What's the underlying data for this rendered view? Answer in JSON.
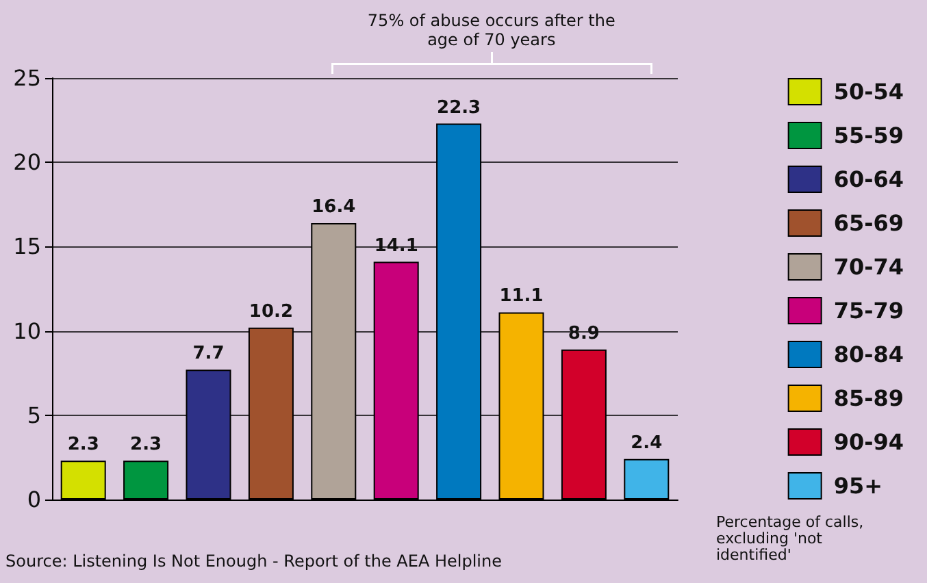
{
  "chart_data": {
    "type": "bar",
    "categories": [
      null,
      null,
      null,
      null,
      null,
      null,
      null,
      null,
      null,
      null
    ],
    "series": [
      {
        "name": "50-54",
        "color": "#d4e000",
        "values": [
          2.3,
          null,
          null,
          null,
          null,
          null,
          null,
          null,
          null,
          null
        ]
      },
      {
        "name": "55-59",
        "color": "#009640",
        "values": [
          null,
          2.3,
          null,
          null,
          null,
          null,
          null,
          null,
          null,
          null
        ]
      },
      {
        "name": "60-64",
        "color": "#2e3187",
        "values": [
          null,
          null,
          7.7,
          null,
          null,
          null,
          null,
          null,
          null,
          null
        ]
      },
      {
        "name": "65-69",
        "color": "#a0522d",
        "values": [
          null,
          null,
          null,
          10.2,
          null,
          null,
          null,
          null,
          null,
          null
        ]
      },
      {
        "name": "70-74",
        "color": "#b0a398",
        "values": [
          null,
          null,
          null,
          null,
          16.4,
          null,
          null,
          null,
          null,
          null
        ]
      },
      {
        "name": "75-79",
        "color": "#c8007a",
        "values": [
          null,
          null,
          null,
          null,
          null,
          14.1,
          null,
          null,
          null,
          null
        ]
      },
      {
        "name": "80-84",
        "color": "#0079bf",
        "values": [
          null,
          null,
          null,
          null,
          null,
          null,
          22.3,
          null,
          null,
          null
        ]
      },
      {
        "name": "85-89",
        "color": "#f5b300",
        "values": [
          null,
          null,
          null,
          null,
          null,
          null,
          null,
          11.1,
          null,
          null
        ]
      },
      {
        "name": "90-94",
        "color": "#d2002a",
        "values": [
          null,
          null,
          null,
          null,
          null,
          null,
          null,
          null,
          8.9,
          null
        ]
      },
      {
        "name": "95+",
        "color": "#40b4e8",
        "values": [
          null,
          null,
          null,
          null,
          null,
          null,
          null,
          null,
          null,
          2.4
        ]
      }
    ],
    "ylim": [
      0,
      25
    ],
    "yticks": [
      0,
      5,
      10,
      15,
      20,
      25
    ],
    "grid": "y",
    "legend": "right",
    "tick_labels": "y",
    "data_labels": true,
    "annotations": [
      "75% of abuse occurs after the age of 70 years",
      "Source: Listening Is Not Enough - Report of the AEA Helpline",
      "Percentage of calls, excluding 'not identified'"
    ]
  }
}
